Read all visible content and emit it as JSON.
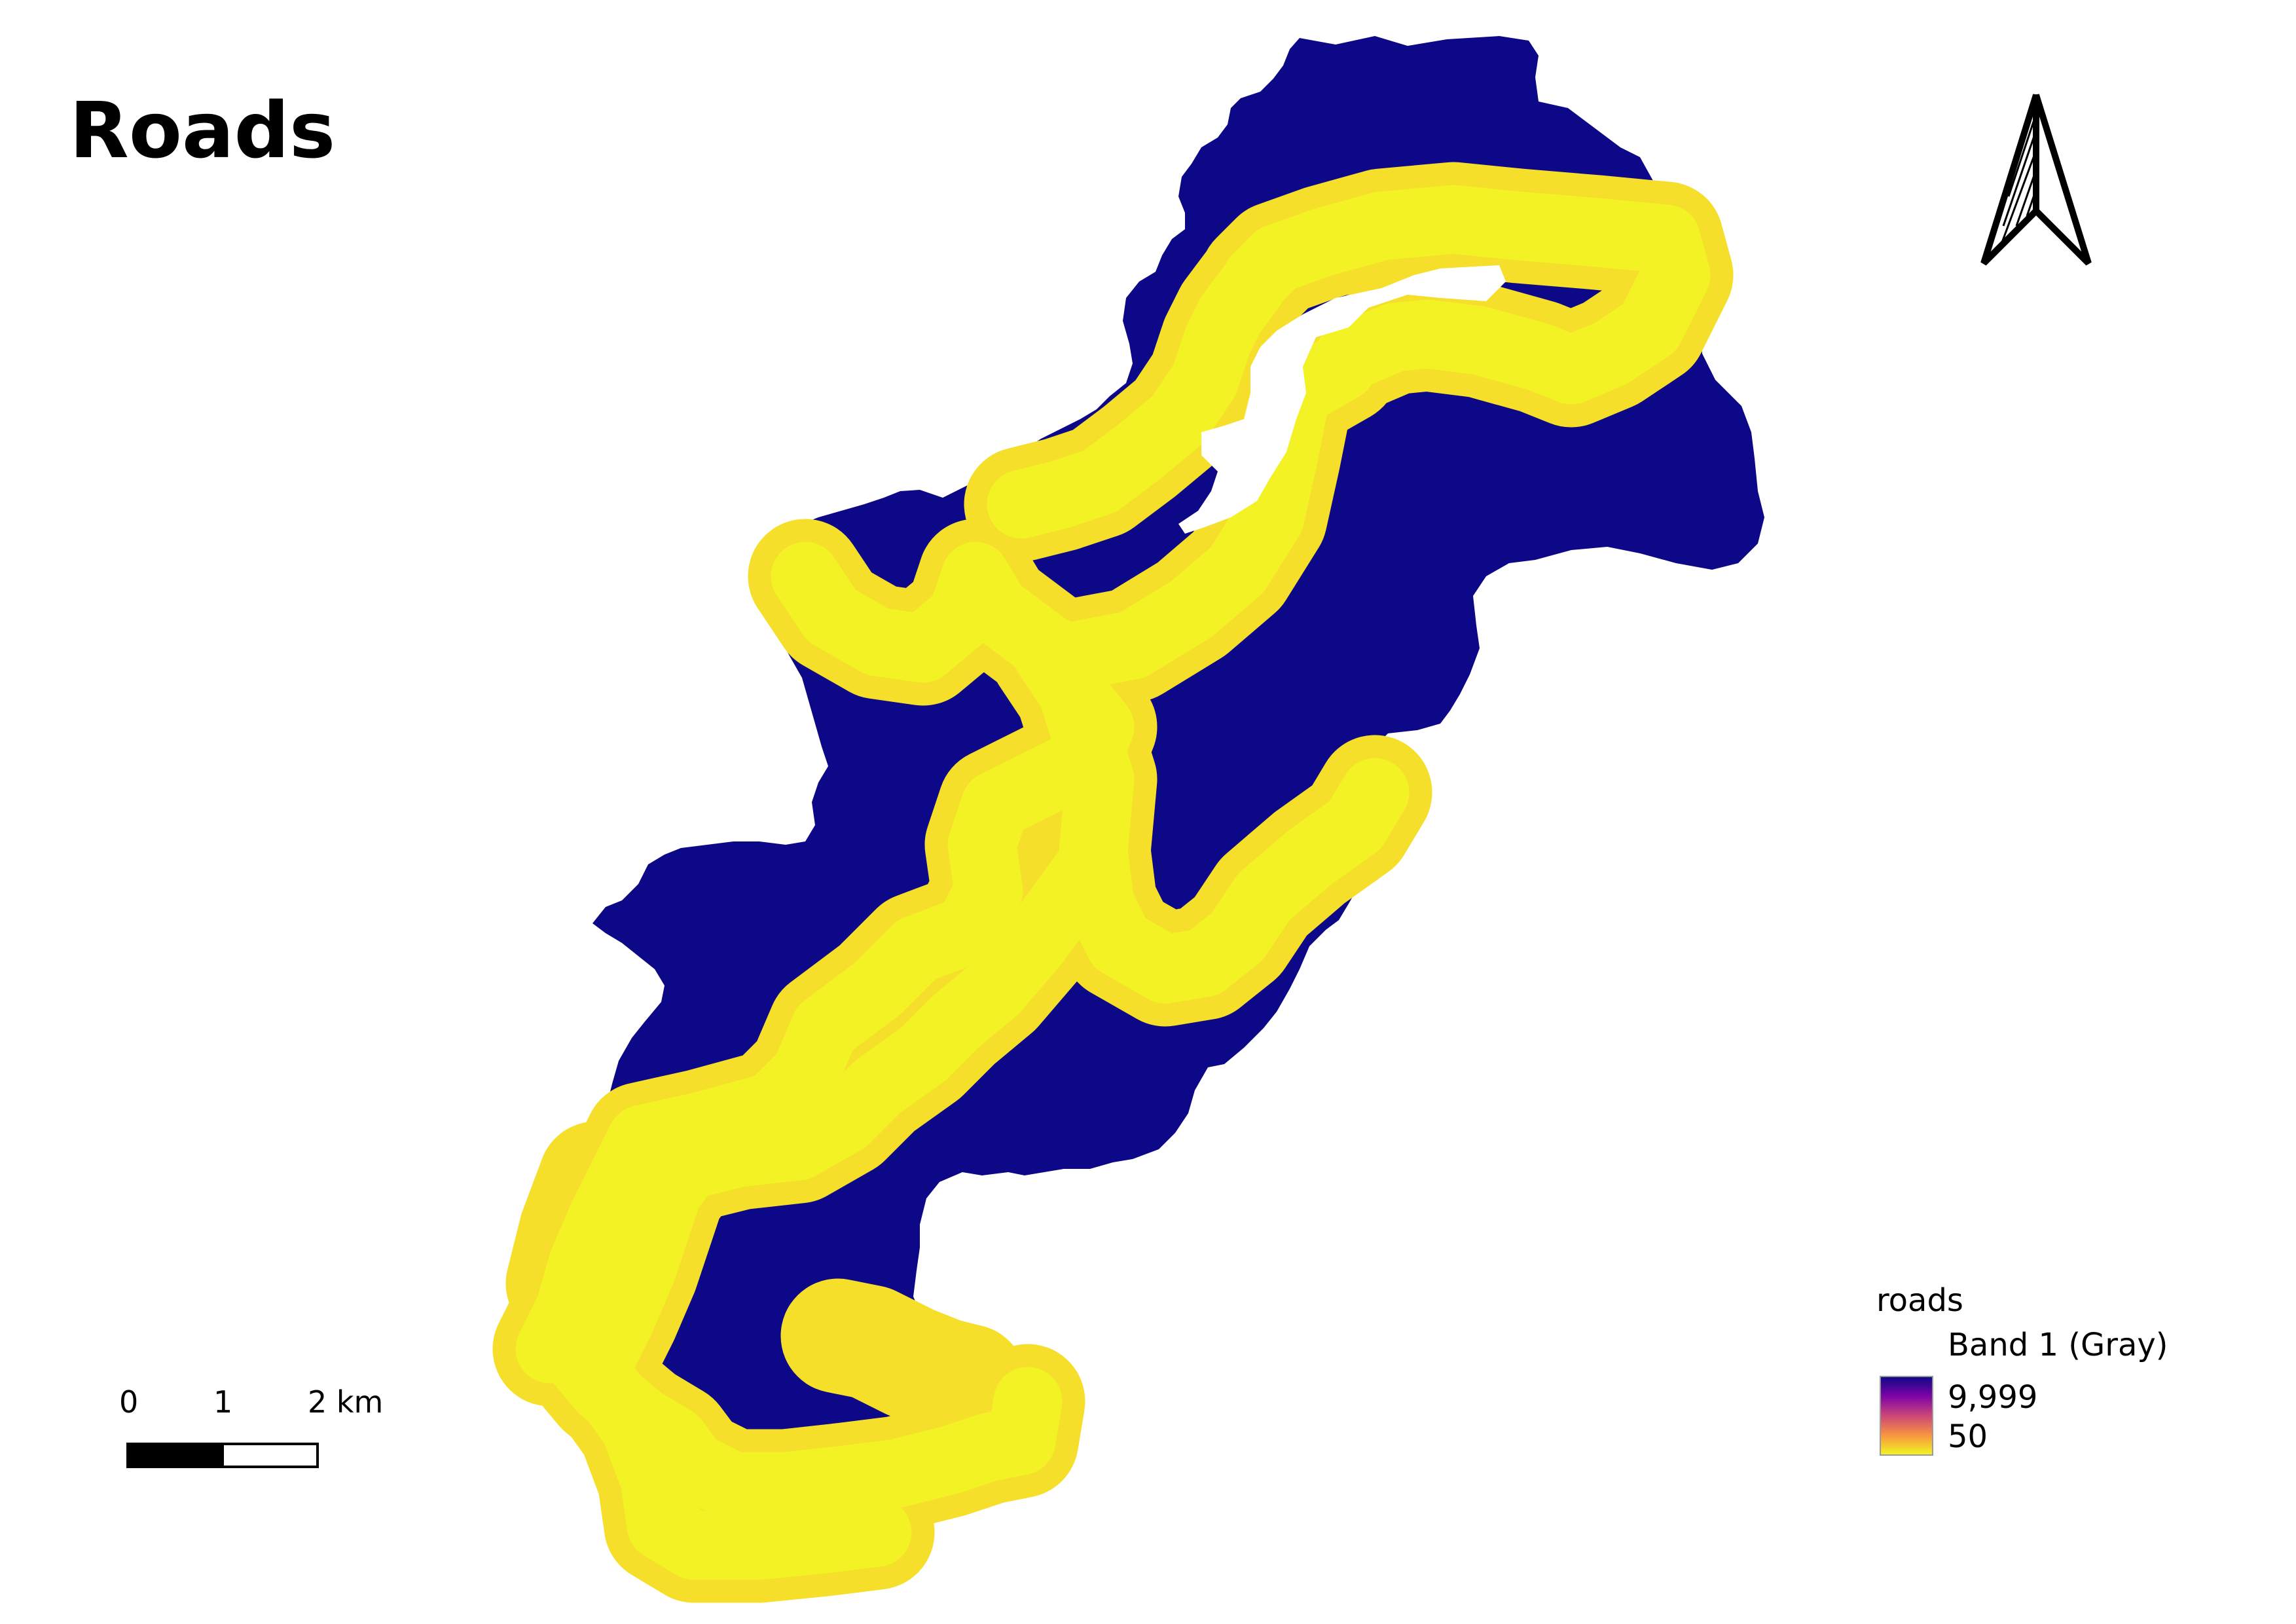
{
  "map": {
    "title": "Roads",
    "colors": {
      "background": "#ffffff",
      "study_area": "#0d0887",
      "road_buffer_outer": "#f5df2a",
      "road_buffer_inner": "#f2f224",
      "gap": "#ffffff"
    }
  },
  "scale_bar": {
    "labels": [
      "0",
      "1",
      "2 km"
    ]
  },
  "north_arrow": {
    "icon": "north-arrow-icon"
  },
  "legend": {
    "layer_name": "roads",
    "band_label": "Band 1 (Gray)",
    "max_label": "9,999",
    "min_label": "50",
    "ramp": [
      "#0d0887",
      "#7e03a8",
      "#cc4778",
      "#f89540",
      "#f0f921"
    ]
  }
}
